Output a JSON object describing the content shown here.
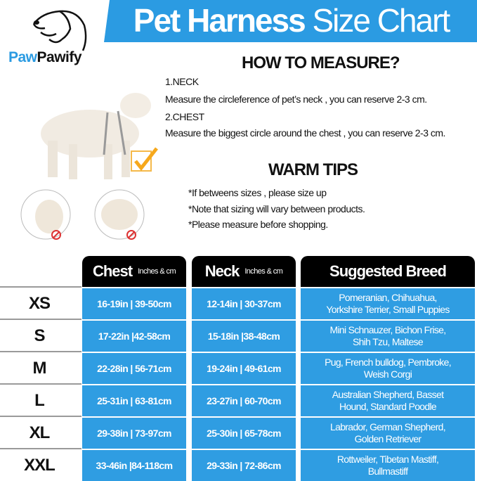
{
  "brand": {
    "name_part1": "Paw",
    "name_part2": "Pawify"
  },
  "banner": {
    "title_bold": "Pet Harness",
    "title_light": "Size Chart",
    "color": "#2b9be2"
  },
  "measure": {
    "heading": "HOW TO MEASURE?",
    "neck_label": "1.NECK",
    "neck_text": "Measure the circleference of pet’s neck , you can reserve 2-3 cm.",
    "chest_label": "2.CHEST",
    "chest_text": "Measure the biggest circle around the chest , you can reserve 2-3 cm."
  },
  "tips": {
    "heading": "WARM TIPS",
    "items": [
      "*If betweens sizes , please size up",
      "*Note that sizing will vary between products.",
      "*Please measure before shopping."
    ]
  },
  "icons": {
    "correct": "checkmark-box-icon",
    "wrong": "prohibited-icon"
  },
  "table": {
    "headers": {
      "chest": "Chest",
      "chest_unit": "Inches & cm",
      "neck": "Neck",
      "neck_unit": "Inches & cm",
      "breed": "Suggested Breed"
    },
    "cell_color": "#2f9de2",
    "rows": [
      {
        "size": "XS",
        "chest": "16-19in | 39-50cm",
        "neck": "12-14in | 30-37cm",
        "breed1": "Pomeranian, Chihuahua,",
        "breed2": "Yorkshire Terrier, Small Puppies"
      },
      {
        "size": "S",
        "chest": "17-22in |42-58cm",
        "neck": "15-18in |38-48cm",
        "breed1": "Mini Schnauzer, Bichon Frise,",
        "breed2": "Shih Tzu, Maltese"
      },
      {
        "size": "M",
        "chest": "22-28in | 56-71cm",
        "neck": "19-24in | 49-61cm",
        "breed1": "Pug, French bulldog, Pembroke,",
        "breed2": "Weish Corgi"
      },
      {
        "size": "L",
        "chest": "25-31in | 63-81cm",
        "neck": "23-27in | 60-70cm",
        "breed1": "Australian Shepherd, Basset",
        "breed2": "Hound, Standard Poodle"
      },
      {
        "size": "XL",
        "chest": "29-38in | 73-97cm",
        "neck": "25-30in | 65-78cm",
        "breed1": "Labrador, German Shepherd,",
        "breed2": "Golden Retriever"
      },
      {
        "size": "XXL",
        "chest": "33-46in |84-118cm",
        "neck": "29-33in | 72-86cm",
        "breed1": "Rottweiler, Tibetan Mastiff,",
        "breed2": "Bullmastiff"
      }
    ]
  }
}
